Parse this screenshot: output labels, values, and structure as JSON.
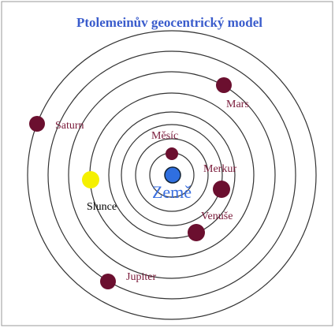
{
  "title": "Ptolemeinův geocentrický model",
  "bodies": {
    "earth": "Země",
    "moon": "Měsíc",
    "mercury": "Merkur",
    "venus": "Venuše",
    "sun": "Slunce",
    "mars": "Mars",
    "jupiter": "Jupiter",
    "saturn": "Saturn"
  }
}
